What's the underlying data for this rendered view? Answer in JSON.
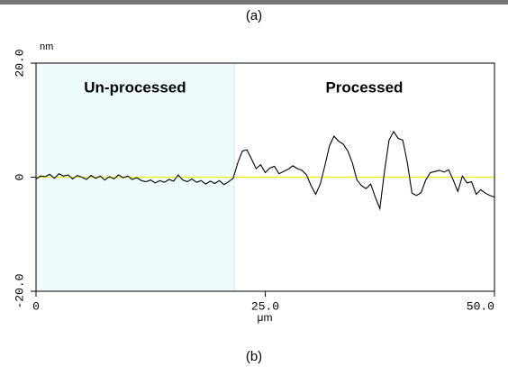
{
  "chart_data": {
    "type": "line",
    "y_unit_label": "nm",
    "x_axis_label": "μm",
    "x": [
      0,
      0.5,
      1,
      1.5,
      2,
      2.5,
      3,
      3.5,
      4,
      4.5,
      5,
      5.5,
      6,
      6.5,
      7,
      7.5,
      8,
      8.5,
      9,
      9.5,
      10,
      10.5,
      11,
      11.5,
      12,
      12.5,
      13,
      13.5,
      14,
      14.5,
      15,
      15.5,
      16,
      16.5,
      17,
      17.5,
      18,
      18.5,
      19,
      19.5,
      20,
      20.5,
      21,
      21.5,
      22,
      22.5,
      23,
      23.5,
      24,
      24.5,
      25,
      25.5,
      26,
      26.5,
      27,
      27.5,
      28,
      28.5,
      29,
      29.5,
      30,
      30.5,
      31,
      31.5,
      32,
      32.5,
      33,
      33.5,
      34,
      34.5,
      35,
      35.5,
      36,
      36.5,
      37,
      37.5,
      38,
      38.5,
      39,
      39.5,
      40,
      40.5,
      41,
      41.5,
      42,
      42.5,
      43,
      43.5,
      44,
      44.5,
      45,
      45.5,
      46,
      46.5,
      47,
      47.5,
      48,
      48.5,
      49,
      49.5,
      50
    ],
    "series": [
      {
        "color": "#000000",
        "values": [
          -0.3,
          0.2,
          0.1,
          0.5,
          -0.2,
          0.6,
          0.2,
          0.4,
          -0.3,
          0.3,
          0,
          -0.4,
          0.3,
          -0.2,
          0.2,
          -0.5,
          0.1,
          -0.3,
          0.4,
          -0.1,
          0.2,
          -0.4,
          -0.1,
          -0.6,
          -0.8,
          -0.5,
          -1,
          -0.6,
          -0.9,
          -0.4,
          -0.7,
          0.4,
          -0.5,
          -0.8,
          -0.3,
          -0.9,
          -0.6,
          -1.2,
          -0.7,
          -1.1,
          -0.6,
          -1.3,
          -0.8,
          -0.2,
          2.5,
          4.6,
          4.8,
          3.2,
          1.5,
          2.2,
          0.8,
          1.6,
          1.9,
          0.6,
          1,
          1.4,
          2,
          1.5,
          1.2,
          0.4,
          -1.5,
          -3,
          -1.2,
          2,
          5.5,
          7.2,
          6.3,
          5.8,
          4.6,
          2.5,
          -0.5,
          -1.5,
          -2,
          -1.2,
          -3.5,
          -5.5,
          1,
          6.5,
          8,
          6.8,
          6.5,
          2.5,
          -2.8,
          -3.2,
          -2.7,
          -0.5,
          0.8,
          1,
          1.2,
          0.9,
          1.3,
          -0.5,
          -2.5,
          0.2,
          -1,
          -0.8,
          -3,
          -2.2,
          -2.8,
          -3.2,
          -3.5
        ]
      }
    ],
    "xlim": [
      0,
      50
    ],
    "xticks": [
      0,
      {
        "value": 25,
        "label": "25.0"
      },
      {
        "value": 50,
        "label": "50.0"
      }
    ],
    "ylim": [
      -20,
      20
    ],
    "yticks": [
      {
        "value": -20,
        "label": "-20.0"
      },
      0,
      {
        "value": 20,
        "label": "20.0"
      }
    ],
    "shaded_region": {
      "x": [
        0,
        21.6
      ],
      "color": "#eefcfd"
    },
    "reference_line": {
      "y": 0,
      "color": "#f0f000"
    },
    "annotations": [
      {
        "text": "Un-processed"
      },
      {
        "text": "Processed"
      }
    ]
  },
  "captions": [
    "(a)",
    "(b)"
  ]
}
